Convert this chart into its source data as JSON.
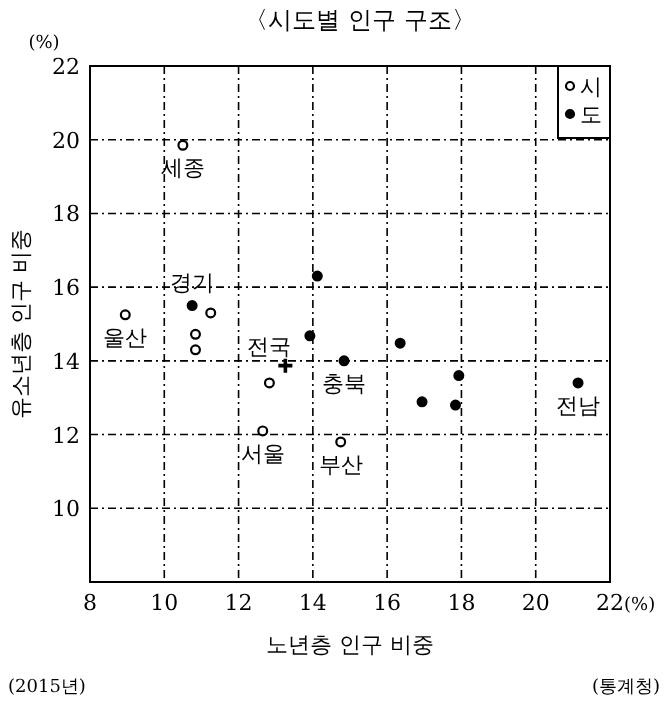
{
  "chart_data": {
    "type": "scatter",
    "title": "〈시도별 인구 구조〉",
    "xlabel": "노년층 인구 비중",
    "ylabel": "유소년층 인구 비중",
    "xlim": [
      8,
      22
    ],
    "ylim": [
      8,
      22
    ],
    "xticks": [
      8,
      10,
      12,
      14,
      16,
      18,
      20,
      {
        "value": 22,
        "label": "22(%)"
      }
    ],
    "yticks": [
      {
        "value": 8,
        "label": null
      },
      10,
      12,
      14,
      16,
      18,
      20,
      22
    ],
    "grid": true,
    "legend": "top right",
    "series": [
      {
        "name": "시",
        "color": "#ffffff",
        "marker": "circle",
        "x": [
          10.5,
          8.95,
          11.25,
          10.84,
          10.84,
          12.83,
          12.65,
          14.75
        ],
        "values": [
          19.85,
          15.25,
          15.3,
          14.72,
          14.3,
          13.4,
          12.1,
          11.8
        ]
      },
      {
        "name": "도",
        "color": "#000000",
        "marker": "circle",
        "x": [
          10.75,
          14.12,
          13.92,
          16.35,
          14.84,
          17.93,
          16.94,
          17.84,
          21.14
        ],
        "values": [
          15.5,
          16.3,
          14.68,
          14.48,
          14.0,
          13.6,
          12.89,
          12.8,
          13.4
        ]
      },
      {
        "name": "전국",
        "color": "#000000",
        "marker": "cross",
        "x": [
          13.26
        ],
        "values": [
          13.87
        ]
      }
    ],
    "annotations": [
      "(%)",
      {
        "text": "세종",
        "x": 10.5,
        "y": 19.85
      },
      {
        "text": "울산",
        "x": 8.95,
        "y": 15.25
      },
      {
        "text": "경기",
        "x": 10.75,
        "y": 15.5
      },
      {
        "text": "서울",
        "x": 12.65,
        "y": 12.1
      },
      {
        "text": "부산",
        "x": 14.75,
        "y": 11.8
      },
      {
        "text": "충북",
        "x": 14.84,
        "y": 14.0
      },
      {
        "text": "전남",
        "x": 21.14,
        "y": 13.4
      },
      "(2015년)",
      "(통계청)"
    ]
  }
}
